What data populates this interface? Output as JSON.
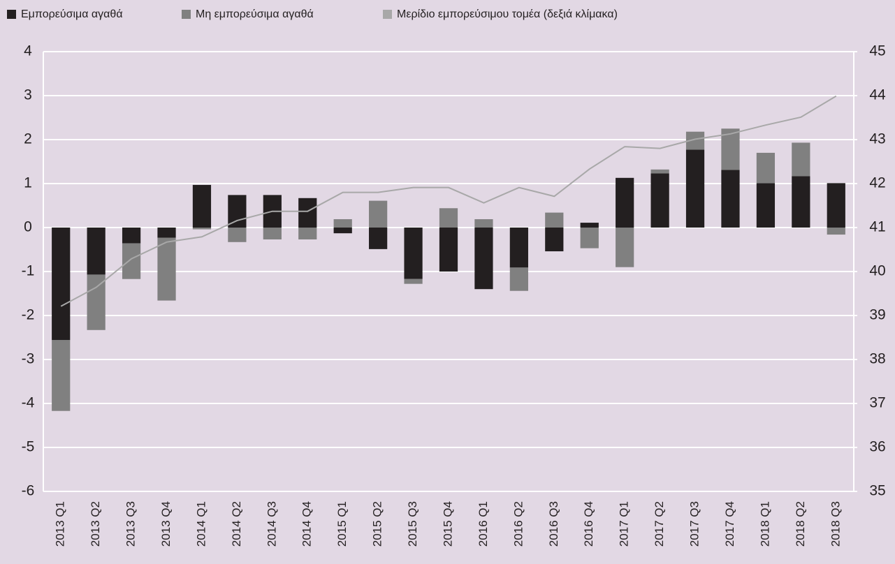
{
  "chart_data": {
    "type": "bar",
    "categories": [
      "2013 Q1",
      "2013 Q2",
      "2013 Q3",
      "2013 Q4",
      "2014 Q1",
      "2014 Q2",
      "2014 Q3",
      "2014 Q4",
      "2015 Q1",
      "2015 Q2",
      "2015 Q3",
      "2015 Q4",
      "2016 Q1",
      "2016 Q2",
      "2016 Q3",
      "2016 Q4",
      "2017 Q1",
      "2017 Q2",
      "2017 Q3",
      "2017 Q4",
      "2018 Q1",
      "2018 Q2",
      "2018 Q3"
    ],
    "series": [
      {
        "name": "Εμπορεύσιμα αγαθά",
        "color": "#231f20",
        "values": [
          -2.56,
          -1.07,
          -0.36,
          -0.23,
          0.97,
          0.74,
          0.74,
          0.67,
          -0.13,
          -0.49,
          -1.17,
          -1.0,
          -1.4,
          -0.91,
          -0.54,
          0.11,
          1.13,
          1.23,
          1.77,
          1.31,
          1.01,
          1.17,
          1.01
        ]
      },
      {
        "name": "Μη εμπορεύσιμα αγαθά",
        "color": "#808080",
        "values": [
          -1.61,
          -1.26,
          -0.81,
          -1.43,
          -0.04,
          -0.33,
          -0.27,
          -0.27,
          0.19,
          0.61,
          -0.11,
          0.44,
          0.19,
          -0.53,
          0.34,
          -0.47,
          -0.9,
          0.09,
          0.41,
          0.94,
          0.69,
          0.76,
          -0.16
        ]
      },
      {
        "name": "Μερίδιο εμπορεύσιμου τομέα (δεξιά κλίμακα)",
        "color": "#a8a8a8",
        "type": "line",
        "axis": "y2",
        "values": [
          39.21,
          39.64,
          40.29,
          40.67,
          40.79,
          41.16,
          41.37,
          41.37,
          41.8,
          41.8,
          41.91,
          41.91,
          41.56,
          41.91,
          41.71,
          42.33,
          42.84,
          42.8,
          43.01,
          43.13,
          43.33,
          43.51,
          43.99
        ]
      }
    ],
    "ylim": [
      -6,
      4
    ],
    "yticks": [
      -6,
      -5,
      -4,
      -3,
      -2,
      -1,
      0,
      1,
      2,
      3,
      4
    ],
    "y2lim": [
      35,
      45
    ],
    "y2ticks": [
      35,
      36,
      37,
      38,
      39,
      40,
      41,
      42,
      43,
      44,
      45
    ],
    "grid": true,
    "stacked": true,
    "legend": "top-left"
  }
}
